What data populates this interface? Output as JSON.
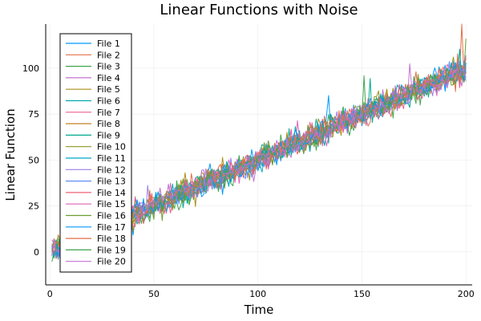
{
  "chart_data": {
    "type": "line",
    "title": "Linear Functions with Noise",
    "xlabel": "Time",
    "ylabel": "Linear Function",
    "xlim": [
      -2,
      203
    ],
    "ylim": [
      -18,
      124
    ],
    "x_ticks": [
      0,
      50,
      100,
      150,
      200
    ],
    "y_ticks": [
      0,
      25,
      50,
      75,
      100
    ],
    "grid": true,
    "legend_position": "top-left",
    "x_start": 1,
    "x_end": 200,
    "trend": {
      "intercept": 0,
      "slope": 0.5
    },
    "noise_amplitude": 6,
    "series": [
      {
        "name": "File 1",
        "color": "#009AFA"
      },
      {
        "name": "File 2",
        "color": "#E36F47"
      },
      {
        "name": "File 3",
        "color": "#3EA44E"
      },
      {
        "name": "File 4",
        "color": "#C371D2"
      },
      {
        "name": "File 5",
        "color": "#AC8E18"
      },
      {
        "name": "File 6",
        "color": "#00AAAE"
      },
      {
        "name": "File 7",
        "color": "#ED5E93"
      },
      {
        "name": "File 8",
        "color": "#C68225"
      },
      {
        "name": "File 9",
        "color": "#00A98D"
      },
      {
        "name": "File 10",
        "color": "#8E971E"
      },
      {
        "name": "File 11",
        "color": "#00A9CD"
      },
      {
        "name": "File 12",
        "color": "#9B7FE9"
      },
      {
        "name": "File 13",
        "color": "#618DF6"
      },
      {
        "name": "File 14",
        "color": "#F06173"
      },
      {
        "name": "File 15",
        "color": "#DD65B6"
      },
      {
        "name": "File 16",
        "color": "#6B9E32"
      },
      {
        "name": "File 17",
        "color": "#009AFA"
      },
      {
        "name": "File 18",
        "color": "#E36F47"
      },
      {
        "name": "File 19",
        "color": "#3EA44E"
      },
      {
        "name": "File 20",
        "color": "#C371D2"
      }
    ]
  }
}
